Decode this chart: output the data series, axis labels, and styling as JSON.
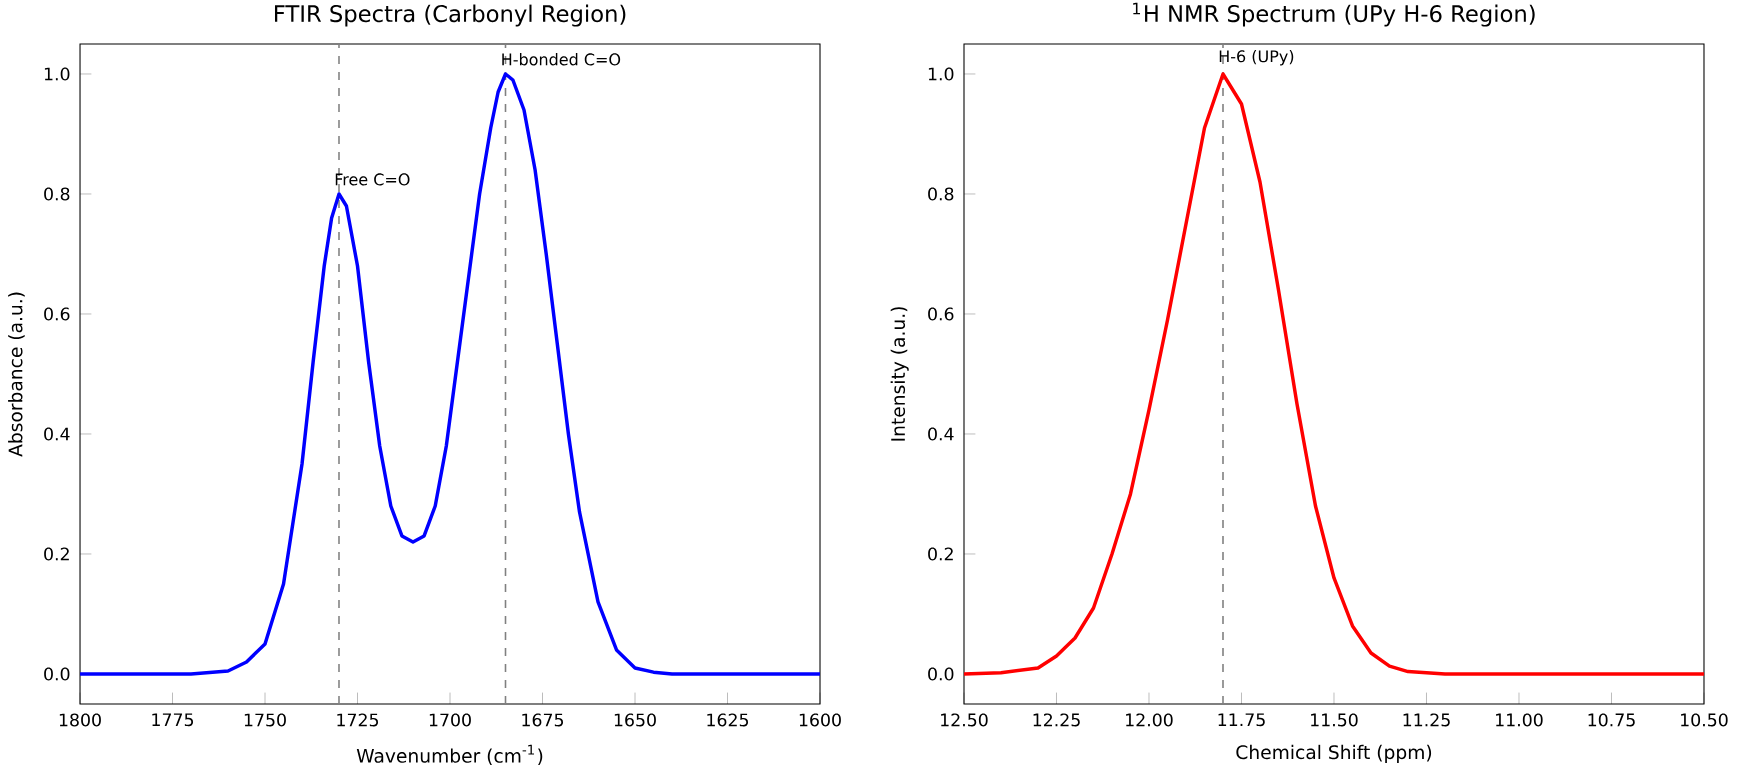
{
  "chart_data": [
    {
      "type": "line",
      "title": "FTIR Spectra (Carbonyl Region)",
      "xlabel": "Wavenumber (cm$^{-1}$)",
      "ylabel": "Absorbance (a.u.)",
      "xlim": [
        1800,
        1600
      ],
      "ylim": [
        -0.05,
        1.05
      ],
      "xticks": [
        1800,
        1775,
        1750,
        1725,
        1700,
        1675,
        1650,
        1625,
        1600
      ],
      "yticks": [
        {
          "value": 0,
          "label": "0.0"
        },
        {
          "value": 0.2,
          "label": "0.2"
        },
        {
          "value": 0.4,
          "label": "0.4"
        },
        {
          "value": 0.6,
          "label": "0.6"
        },
        {
          "value": 0.8,
          "label": "0.8"
        },
        {
          "value": 1.0,
          "label": "1.0"
        }
      ],
      "series": [
        {
          "color": "#0000ff",
          "x": [
            1800,
            1780,
            1770,
            1760,
            1755,
            1750,
            1745,
            1740,
            1737,
            1734,
            1732,
            1730,
            1728,
            1725,
            1722,
            1719,
            1716,
            1713,
            1710,
            1707,
            1704,
            1701,
            1698,
            1695,
            1692,
            1689,
            1687,
            1685,
            1683,
            1680,
            1677,
            1674,
            1671,
            1668,
            1665,
            1660,
            1655,
            1650,
            1645,
            1640,
            1620,
            1600
          ],
          "values": [
            0,
            0,
            0,
            0.005,
            0.02,
            0.05,
            0.15,
            0.35,
            0.52,
            0.68,
            0.76,
            0.8,
            0.78,
            0.68,
            0.52,
            0.38,
            0.28,
            0.23,
            0.22,
            0.23,
            0.28,
            0.38,
            0.52,
            0.66,
            0.8,
            0.91,
            0.97,
            1.0,
            0.99,
            0.94,
            0.84,
            0.7,
            0.55,
            0.4,
            0.27,
            0.12,
            0.04,
            0.01,
            0.003,
            0,
            0,
            0
          ]
        }
      ],
      "ref_lines": [
        {
          "axis": "x",
          "value": 1730,
          "color": "#808080",
          "line_style": "dashed"
        },
        {
          "axis": "x",
          "value": 1685,
          "color": "#808080",
          "line_style": "dashed"
        }
      ],
      "annotations": [
        {
          "text": "Free C=O",
          "x": 1730,
          "y": 0.8
        },
        {
          "text": "H-bonded C=O",
          "x": 1685,
          "y": 1.0
        }
      ]
    },
    {
      "type": "line",
      "title": "$^{1}$H NMR Spectrum (UPy H-6 Region)",
      "xlabel": "Chemical Shift (ppm)",
      "ylabel": "Intensity (a.u.)",
      "xlim": [
        12.5,
        10.5
      ],
      "ylim": [
        -0.05,
        1.05
      ],
      "xticks": [
        {
          "value": 12.5,
          "label": "12.50"
        },
        {
          "value": 12.25,
          "label": "12.25"
        },
        {
          "value": 12.0,
          "label": "12.00"
        },
        {
          "value": 11.75,
          "label": "11.75"
        },
        {
          "value": 11.5,
          "label": "11.50"
        },
        {
          "value": 11.25,
          "label": "11.25"
        },
        {
          "value": 11.0,
          "label": "11.00"
        },
        {
          "value": 10.75,
          "label": "10.75"
        },
        {
          "value": 10.5,
          "label": "10.50"
        }
      ],
      "yticks": [
        {
          "value": 0,
          "label": "0.0"
        },
        {
          "value": 0.2,
          "label": "0.2"
        },
        {
          "value": 0.4,
          "label": "0.4"
        },
        {
          "value": 0.6,
          "label": "0.6"
        },
        {
          "value": 0.8,
          "label": "0.8"
        },
        {
          "value": 1.0,
          "label": "1.0"
        }
      ],
      "series": [
        {
          "color": "#ff0000",
          "x": [
            12.5,
            12.4,
            12.3,
            12.25,
            12.2,
            12.15,
            12.1,
            12.05,
            12.0,
            11.95,
            11.9,
            11.85,
            11.8,
            11.75,
            11.7,
            11.65,
            11.6,
            11.55,
            11.5,
            11.45,
            11.4,
            11.35,
            11.3,
            11.2,
            11.0,
            10.5
          ],
          "values": [
            0,
            0.002,
            0.01,
            0.03,
            0.06,
            0.11,
            0.2,
            0.3,
            0.44,
            0.59,
            0.75,
            0.91,
            1.0,
            0.95,
            0.82,
            0.64,
            0.45,
            0.28,
            0.16,
            0.08,
            0.035,
            0.013,
            0.004,
            0,
            0,
            0
          ]
        }
      ],
      "ref_lines": [
        {
          "axis": "x",
          "value": 11.8,
          "color": "#808080",
          "line_style": "dashed"
        }
      ],
      "annotations": [
        {
          "text": "H-6 (UPy)",
          "x": 11.8,
          "y": 1.0
        }
      ]
    }
  ]
}
